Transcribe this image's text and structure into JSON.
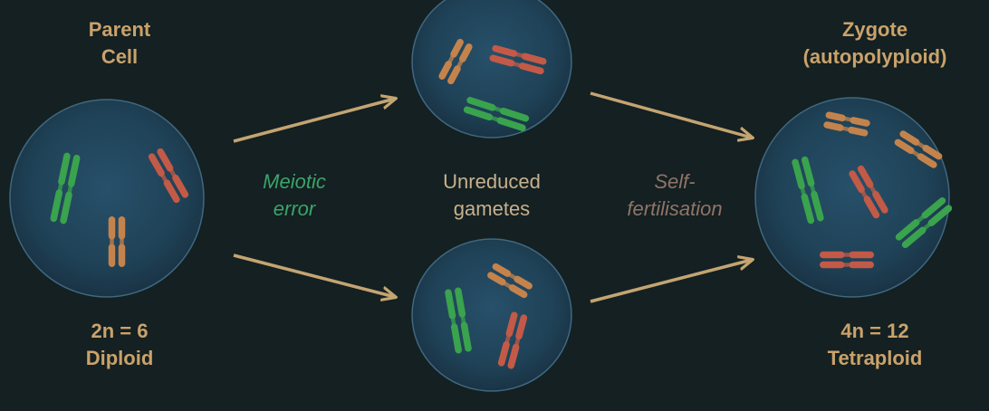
{
  "labels": {
    "parent": {
      "line1": "Parent",
      "line2": "Cell"
    },
    "parent_ploidy": {
      "line1": "2n = 6",
      "line2": "Diploid"
    },
    "meiotic": {
      "line1": "Meiotic",
      "line2": "error"
    },
    "gametes": {
      "line1": "Unreduced",
      "line2": "gametes"
    },
    "selffert": {
      "line1": "Self-",
      "line2": "fertilisation"
    },
    "zygote": {
      "line1": "Zygote",
      "line2": "(autopolyploid)"
    },
    "zygote_ploidy": {
      "line1": "4n = 12",
      "line2": "Tetraploid"
    }
  },
  "colors": {
    "background": "#142021",
    "cell_fill": "#1f3e52",
    "cell_edge": "#3f6880",
    "arrow": "#c4a472",
    "chromosome_green": "#3aa34d",
    "chromosome_red": "#c35a47",
    "chromosome_orange": "#c4834c",
    "label_gold": "#c9a26b",
    "label_green": "#3aa46a",
    "label_mauve": "#8f7468"
  },
  "cells": [
    {
      "name": "parent-cell",
      "chromosome_pairs": [
        "green",
        "red",
        "orange"
      ]
    },
    {
      "name": "gamete-cell-top",
      "chromosome_pairs": [
        "orange",
        "red",
        "green"
      ]
    },
    {
      "name": "gamete-cell-bottom",
      "chromosome_pairs": [
        "green",
        "orange",
        "red"
      ]
    },
    {
      "name": "zygote-cell",
      "chromosome_pairs": [
        "orange",
        "orange",
        "green",
        "red",
        "green",
        "red"
      ]
    }
  ]
}
